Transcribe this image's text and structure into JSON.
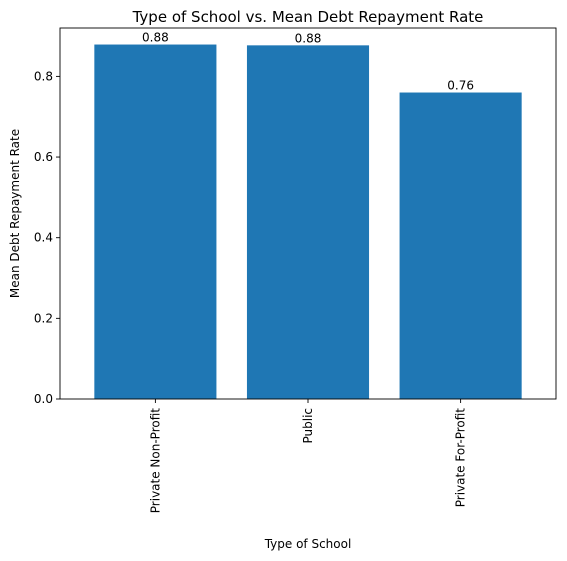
{
  "chart_data": {
    "type": "bar",
    "title": "Type of School vs. Mean Debt Repayment Rate",
    "xlabel": "Type of School",
    "ylabel": "Mean Debt Repayment Rate",
    "categories": [
      "Private Non-Profit",
      "Public",
      "Private For-Profit"
    ],
    "values": [
      0.879,
      0.877,
      0.76
    ],
    "value_labels": [
      "0.88",
      "0.88",
      "0.76"
    ],
    "ylim": [
      0,
      0.92
    ],
    "yticks": [
      0.0,
      0.2,
      0.4,
      0.6,
      0.8
    ],
    "ytick_labels": [
      "0.0",
      "0.2",
      "0.4",
      "0.6",
      "0.8"
    ],
    "bar_color": "#1f77b4",
    "grid": false,
    "legend": "none"
  }
}
